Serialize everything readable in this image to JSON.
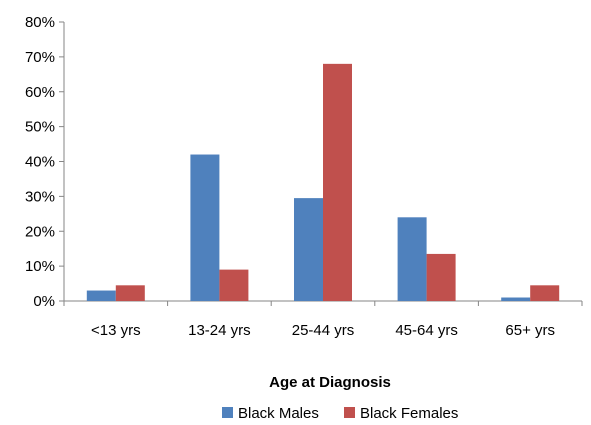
{
  "chart_data": {
    "type": "bar",
    "title": "",
    "xlabel": "Age at Diagnosis",
    "ylabel": "",
    "ylim": [
      0,
      80
    ],
    "yticks": [
      "0%",
      "10%",
      "20%",
      "30%",
      "40%",
      "50%",
      "60%",
      "70%",
      "80%"
    ],
    "categories": [
      "<13 yrs",
      "13-24 yrs",
      "25-44 yrs",
      "45-64 yrs",
      "65+ yrs"
    ],
    "series": [
      {
        "name": "Black Males",
        "color": "#4f81bd",
        "values": [
          3,
          42,
          29.5,
          24,
          1
        ]
      },
      {
        "name": "Black Females",
        "color": "#c0504d",
        "values": [
          4.5,
          9,
          68,
          13.5,
          4.5
        ]
      }
    ],
    "grid": false,
    "legend": "bottom-center"
  }
}
